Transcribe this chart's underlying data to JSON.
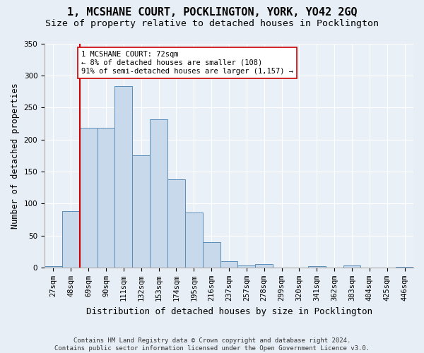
{
  "title1": "1, MCSHANE COURT, POCKLINGTON, YORK, YO42 2GQ",
  "title2": "Size of property relative to detached houses in Pocklington",
  "xlabel": "Distribution of detached houses by size in Pocklington",
  "ylabel": "Number of detached properties",
  "footnote": "Contains HM Land Registry data © Crown copyright and database right 2024.\nContains public sector information licensed under the Open Government Licence v3.0.",
  "bin_labels": [
    "27sqm",
    "48sqm",
    "69sqm",
    "90sqm",
    "111sqm",
    "132sqm",
    "153sqm",
    "174sqm",
    "195sqm",
    "216sqm",
    "237sqm",
    "257sqm",
    "278sqm",
    "299sqm",
    "320sqm",
    "341sqm",
    "362sqm",
    "383sqm",
    "404sqm",
    "425sqm",
    "446sqm"
  ],
  "bar_values": [
    2,
    88,
    218,
    218,
    283,
    175,
    231,
    138,
    86,
    40,
    10,
    3,
    6,
    0,
    0,
    2,
    0,
    3,
    0,
    0,
    1
  ],
  "bar_color": "#c9d9ec",
  "bar_edgecolor": "#5b8db8",
  "vline_color": "#cc0000",
  "annotation_text": "1 MCSHANE COURT: 72sqm\n← 8% of detached houses are smaller (108)\n91% of semi-detached houses are larger (1,157) →",
  "annotation_box_color": "white",
  "annotation_box_edgecolor": "#cc0000",
  "ylim": [
    0,
    350
  ],
  "yticks": [
    0,
    50,
    100,
    150,
    200,
    250,
    300,
    350
  ],
  "bg_color": "#e8eef5",
  "plot_bg_color": "#eaf0f7",
  "title1_fontsize": 11,
  "title2_fontsize": 9.5,
  "xlabel_fontsize": 9,
  "ylabel_fontsize": 8.5,
  "annotation_fontsize": 7.5,
  "tick_fontsize": 7.5,
  "footnote_fontsize": 6.5
}
